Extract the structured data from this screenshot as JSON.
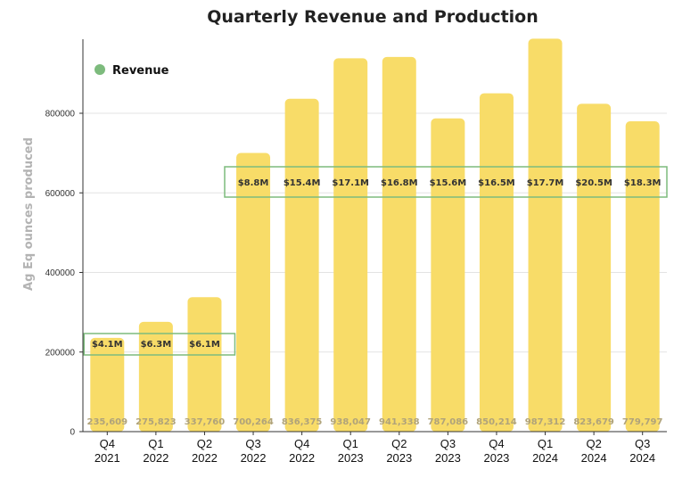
{
  "chart_data": {
    "type": "bar",
    "title": "Quarterly Revenue and Production",
    "ylabel": "Ag Eq ounces produced",
    "xlabel": "",
    "ylim": [
      0,
      1000000
    ],
    "yticks": [
      0,
      200000,
      400000,
      600000,
      800000
    ],
    "grid": "horizontal",
    "legend_position": "top-left",
    "categories": [
      "Q4\n2021",
      "Q1\n2022",
      "Q2\n2022",
      "Q3\n2022",
      "Q4\n2022",
      "Q1\n2023",
      "Q2\n2023",
      "Q3\n2023",
      "Q4\n2023",
      "Q1\n2024",
      "Q2\n2024",
      "Q3\n2024"
    ],
    "values": [
      235609,
      275823,
      337760,
      700264,
      836375,
      938047,
      941338,
      787086,
      850214,
      987312,
      823679,
      779797
    ],
    "value_labels": [
      "235,609",
      "275,823",
      "337,760",
      "700,264",
      "836,375",
      "938,047",
      "941,338",
      "787,086",
      "850,214",
      "987,312",
      "823,679",
      "779,797"
    ],
    "revenue_labels": [
      "$4.1M",
      "$6.3M",
      "$6.1M",
      "$8.8M",
      "$15.4M",
      "$17.1M",
      "$16.8M",
      "$15.6M",
      "$16.5M",
      "$17.7M",
      "$20.5M",
      "$18.3M"
    ],
    "legend": [
      {
        "label": "Revenue",
        "color": "#7dbb7d"
      }
    ],
    "colors": {
      "bar": "#f8dc68",
      "highlight_box": "#7dbb7d",
      "grid": "#e3e3e3"
    }
  }
}
